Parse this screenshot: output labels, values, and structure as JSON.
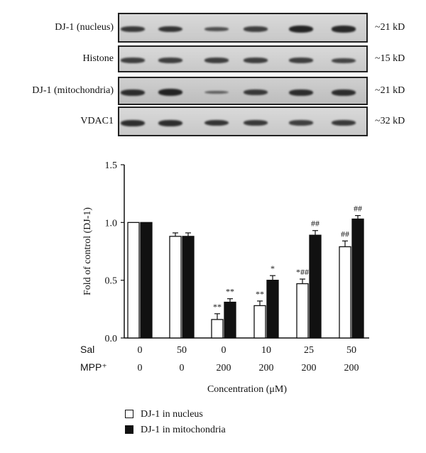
{
  "blots": [
    {
      "label": "DJ-1 (nucleus)",
      "size": "~21 kD",
      "bands": [
        0.8,
        0.85,
        0.6,
        0.75,
        1.0,
        0.95
      ]
    },
    {
      "label": "Histone",
      "size": "~15 kD",
      "bands": [
        0.75,
        0.75,
        0.75,
        0.75,
        0.75,
        0.7
      ]
    },
    {
      "label": "DJ-1 (mitochondria)",
      "size": "~21 kD",
      "bands": [
        0.9,
        1.0,
        0.45,
        0.8,
        0.9,
        0.9
      ]
    },
    {
      "label": "VDAC1",
      "size": "~32 kD",
      "bands": [
        0.9,
        0.9,
        0.85,
        0.8,
        0.75,
        0.8
      ]
    }
  ],
  "chart_data": {
    "type": "bar",
    "ylabel": "Fold of control (DJ-1)",
    "xlabel": "Concentration (μM)",
    "ylim": [
      0,
      1.5
    ],
    "yticks": [
      "0.0",
      "0.5",
      "1.0",
      "1.5"
    ],
    "row_labels": {
      "sal": "Sal",
      "mpp": "MPP⁺"
    },
    "categories_sal": [
      "0",
      "50",
      "0",
      "10",
      "25",
      "50"
    ],
    "categories_mpp": [
      "0",
      "0",
      "200",
      "200",
      "200",
      "200"
    ],
    "series": [
      {
        "name": "DJ-1 in nucleus",
        "color": "#ffffff",
        "values": [
          1.0,
          0.88,
          0.16,
          0.28,
          0.47,
          0.79
        ],
        "errors": [
          0,
          0.03,
          0.05,
          0.04,
          0.04,
          0.05
        ],
        "annotations": [
          "",
          "",
          "**",
          "**",
          "*##",
          "##"
        ]
      },
      {
        "name": "DJ-1 in mitochondria",
        "color": "#111111",
        "values": [
          1.0,
          0.88,
          0.31,
          0.5,
          0.89,
          1.03
        ],
        "errors": [
          0,
          0.03,
          0.03,
          0.04,
          0.04,
          0.03
        ],
        "annotations": [
          "",
          "",
          "**",
          "*",
          "##",
          "##"
        ]
      }
    ],
    "legend": "bottom-left"
  }
}
